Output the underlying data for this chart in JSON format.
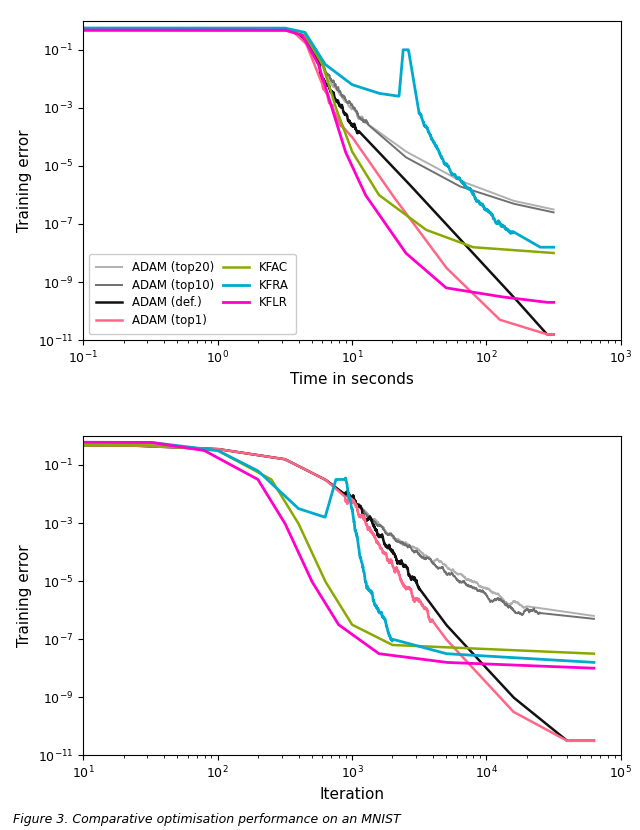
{
  "fig_width": 6.4,
  "fig_height": 8.3,
  "dpi": 100,
  "background_color": "#ffffff",
  "caption": "Figure 3. Comparative optimisation performance on an MNIST",
  "plot1": {
    "xlabel": "Time in seconds",
    "ylabel": "Training error",
    "xlim": [
      -1,
      3
    ],
    "ylim": [
      -11,
      0
    ]
  },
  "plot2": {
    "xlabel": "Iteration",
    "ylabel": "Training error",
    "xlim": [
      1,
      5
    ],
    "ylim": [
      -11,
      0
    ]
  },
  "colors": {
    "adam20": "#b0b0b0",
    "adam10": "#707070",
    "adamdef": "#111111",
    "adamtop1": "#ff6688",
    "kfac": "#88aa00",
    "kfra": "#00aacc",
    "kflr": "#ff00cc"
  },
  "lws": {
    "adam20": 1.4,
    "adam10": 1.4,
    "adamdef": 1.8,
    "adamtop1": 1.8,
    "kfac": 1.8,
    "kfra": 2.0,
    "kflr": 2.0
  },
  "labels": {
    "adam20": "ADAM (top20)",
    "adam10": "ADAM (top10)",
    "adamdef": "ADAM (def.)",
    "adamtop1": "ADAM (top1)",
    "kfac": "KFAC",
    "kfra": "KFRA",
    "kflr": "KFLR"
  }
}
